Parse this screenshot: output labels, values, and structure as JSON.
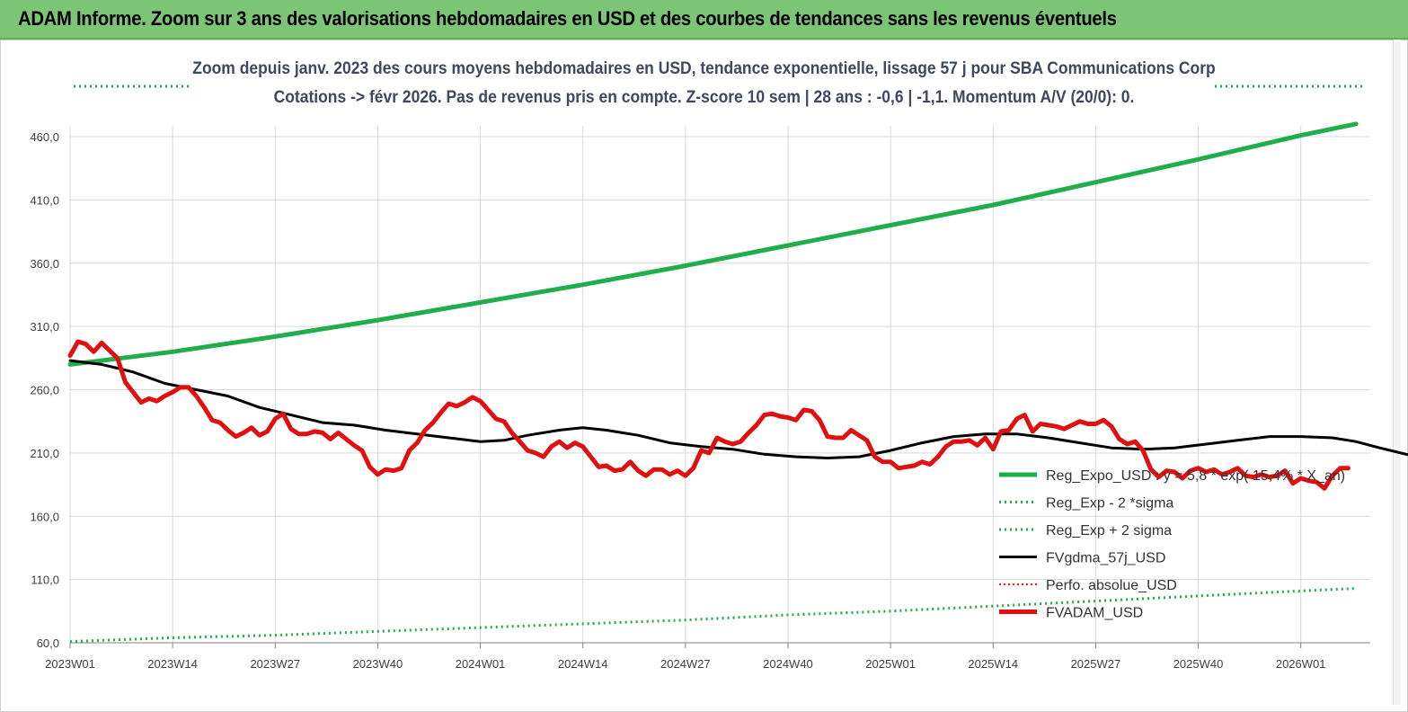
{
  "banner": {
    "title": "ADAM Informe. Zoom sur 3 ans des valorisations hebdomadaires en USD et des courbes de tendances sans les revenus éventuels"
  },
  "colors": {
    "banner_bg": "#7cc576",
    "reg_expo": "#1fae4b",
    "sigma": "#1fae4b",
    "fvgdma": "#000000",
    "perfo": "#e02020",
    "fvadam": "#e01010",
    "grid": "#d9d9d9"
  },
  "chart_data": {
    "type": "line",
    "title": "Zoom depuis janv. 2023 des cours moyens hebdomadaires en USD, tendance exponentielle, lissage 57 j pour SBA Communications Corp",
    "subtitle": "Cotations -> févr 2026.  Pas de revenus pris en compte. Z-score 10 sem | 28 ans : -0,6 | -1,1. Momentum A/V (20/0): 0.",
    "x_ticks": [
      "2023W01",
      "2023W14",
      "2023W27",
      "2023W40",
      "2024W01",
      "2024W14",
      "2024W27",
      "2024W40",
      "2025W01",
      "2025W14",
      "2025W27",
      "2025W40",
      "2026W01"
    ],
    "y_ticks": [
      "60,0",
      "110,0",
      "160,0",
      "210,0",
      "260,0",
      "310,0",
      "360,0",
      "410,0",
      "460,0"
    ],
    "ylim": [
      60,
      495
    ],
    "x_range_weeks": [
      0,
      163
    ],
    "grid": true,
    "legend_position": "bottom-right",
    "series": [
      {
        "name": "Reg_Expo_USD : y = 5,8 * exp( 15,4% * X_an)",
        "style": "thick-solid",
        "points": [
          [
            0,
            280
          ],
          [
            13,
            290
          ],
          [
            26,
            302
          ],
          [
            39,
            315
          ],
          [
            52,
            329
          ],
          [
            65,
            343
          ],
          [
            78,
            358
          ],
          [
            91,
            374
          ],
          [
            104,
            390
          ],
          [
            117,
            406
          ],
          [
            130,
            424
          ],
          [
            143,
            442
          ],
          [
            156,
            461
          ],
          [
            163,
            470
          ]
        ]
      },
      {
        "name": "Reg_Exp - 2 *sigma",
        "style": "dotted",
        "points": [
          [
            0,
            61
          ],
          [
            13,
            64
          ],
          [
            26,
            66
          ],
          [
            39,
            69
          ],
          [
            52,
            72
          ],
          [
            65,
            75
          ],
          [
            78,
            78
          ],
          [
            91,
            82
          ],
          [
            104,
            85
          ],
          [
            117,
            89
          ],
          [
            130,
            93
          ],
          [
            143,
            97
          ],
          [
            156,
            101
          ],
          [
            163,
            103
          ]
        ]
      },
      {
        "name": "Reg_Exp + 2 sigma",
        "style": "dotted",
        "points": [
          [
            0,
            495
          ],
          [
            163,
            495
          ]
        ]
      },
      {
        "name": "FVgdma_57j_USD",
        "style": "solid",
        "points": [
          [
            0,
            283
          ],
          [
            4,
            280
          ],
          [
            8,
            274
          ],
          [
            12,
            265
          ],
          [
            16,
            260
          ],
          [
            20,
            255
          ],
          [
            24,
            246
          ],
          [
            28,
            240
          ],
          [
            32,
            234
          ],
          [
            36,
            232
          ],
          [
            40,
            228
          ],
          [
            44,
            225
          ],
          [
            48,
            222
          ],
          [
            52,
            219
          ],
          [
            55,
            220
          ],
          [
            58,
            224
          ],
          [
            62,
            228
          ],
          [
            65,
            230
          ],
          [
            68,
            228
          ],
          [
            72,
            224
          ],
          [
            76,
            218
          ],
          [
            80,
            215
          ],
          [
            84,
            213
          ],
          [
            88,
            209
          ],
          [
            92,
            207
          ],
          [
            96,
            206
          ],
          [
            100,
            207
          ],
          [
            104,
            212
          ],
          [
            108,
            218
          ],
          [
            112,
            223
          ],
          [
            116,
            225
          ],
          [
            120,
            225
          ],
          [
            124,
            222
          ],
          [
            128,
            218
          ],
          [
            132,
            214
          ],
          [
            136,
            213
          ],
          [
            140,
            214
          ],
          [
            144,
            217
          ],
          [
            148,
            220
          ],
          [
            152,
            223
          ],
          [
            156,
            223
          ],
          [
            160,
            222
          ],
          [
            163,
            219
          ],
          [
            166,
            214
          ],
          [
            170,
            208
          ],
          [
            174,
            204
          ],
          [
            178,
            200
          ],
          [
            182,
            198
          ],
          [
            186,
            197
          ],
          [
            190,
            196
          ],
          [
            194,
            195
          ],
          [
            198,
            196
          ]
        ]
      },
      {
        "name": "Perfo. absolue_USD",
        "style": "dotted-red",
        "points": []
      },
      {
        "name": "FVADAM_USD",
        "style": "thick-solid",
        "points": [
          [
            0,
            287
          ],
          [
            1,
            298
          ],
          [
            2,
            296
          ],
          [
            3,
            290
          ],
          [
            4,
            297
          ],
          [
            5,
            291
          ],
          [
            6,
            285
          ],
          [
            7,
            266
          ],
          [
            8,
            258
          ],
          [
            9,
            250
          ],
          [
            10,
            253
          ],
          [
            11,
            251
          ],
          [
            12,
            255
          ],
          [
            13,
            258
          ],
          [
            14,
            262
          ],
          [
            15,
            262
          ],
          [
            16,
            255
          ],
          [
            17,
            246
          ],
          [
            18,
            236
          ],
          [
            19,
            234
          ],
          [
            20,
            228
          ],
          [
            21,
            223
          ],
          [
            22,
            226
          ],
          [
            23,
            230
          ],
          [
            24,
            224
          ],
          [
            25,
            227
          ],
          [
            26,
            237
          ],
          [
            27,
            241
          ],
          [
            28,
            229
          ],
          [
            29,
            225
          ],
          [
            30,
            225
          ],
          [
            31,
            227
          ],
          [
            32,
            226
          ],
          [
            33,
            221
          ],
          [
            34,
            226
          ],
          [
            35,
            221
          ],
          [
            36,
            216
          ],
          [
            37,
            212
          ],
          [
            38,
            199
          ],
          [
            39,
            193
          ],
          [
            40,
            197
          ],
          [
            41,
            196
          ],
          [
            42,
            198
          ],
          [
            43,
            212
          ],
          [
            44,
            218
          ],
          [
            45,
            228
          ],
          [
            46,
            234
          ],
          [
            47,
            242
          ],
          [
            48,
            249
          ],
          [
            49,
            247
          ],
          [
            50,
            250
          ],
          [
            51,
            254
          ],
          [
            52,
            251
          ],
          [
            53,
            244
          ],
          [
            54,
            237
          ],
          [
            55,
            235
          ],
          [
            56,
            226
          ],
          [
            57,
            219
          ],
          [
            58,
            212
          ],
          [
            59,
            210
          ],
          [
            60,
            207
          ],
          [
            61,
            215
          ],
          [
            62,
            219
          ],
          [
            63,
            214
          ],
          [
            64,
            218
          ],
          [
            65,
            215
          ],
          [
            66,
            207
          ],
          [
            67,
            199
          ],
          [
            68,
            200
          ],
          [
            69,
            196
          ],
          [
            70,
            197
          ],
          [
            71,
            203
          ],
          [
            72,
            196
          ],
          [
            73,
            192
          ],
          [
            74,
            197
          ],
          [
            75,
            197
          ],
          [
            76,
            193
          ],
          [
            77,
            196
          ],
          [
            78,
            192
          ],
          [
            79,
            198
          ],
          [
            80,
            212
          ],
          [
            81,
            210
          ],
          [
            82,
            222
          ],
          [
            83,
            219
          ],
          [
            84,
            217
          ],
          [
            85,
            219
          ],
          [
            86,
            226
          ],
          [
            87,
            232
          ],
          [
            88,
            240
          ],
          [
            89,
            241
          ],
          [
            90,
            239
          ],
          [
            91,
            238
          ],
          [
            92,
            236
          ],
          [
            93,
            244
          ],
          [
            94,
            243
          ],
          [
            95,
            236
          ],
          [
            96,
            223
          ],
          [
            97,
            222
          ],
          [
            98,
            222
          ],
          [
            99,
            228
          ],
          [
            100,
            224
          ],
          [
            101,
            220
          ],
          [
            102,
            207
          ],
          [
            103,
            203
          ],
          [
            104,
            203
          ],
          [
            105,
            198
          ],
          [
            106,
            199
          ],
          [
            107,
            200
          ],
          [
            108,
            203
          ],
          [
            109,
            201
          ],
          [
            110,
            207
          ],
          [
            111,
            215
          ],
          [
            112,
            219
          ],
          [
            113,
            219
          ],
          [
            114,
            220
          ],
          [
            115,
            216
          ],
          [
            116,
            222
          ],
          [
            117,
            213
          ],
          [
            118,
            227
          ],
          [
            119,
            228
          ],
          [
            120,
            237
          ],
          [
            121,
            240
          ],
          [
            122,
            227
          ],
          [
            123,
            233
          ],
          [
            124,
            232
          ],
          [
            125,
            231
          ],
          [
            126,
            229
          ],
          [
            127,
            232
          ],
          [
            128,
            235
          ],
          [
            129,
            233
          ],
          [
            130,
            233
          ],
          [
            131,
            236
          ],
          [
            132,
            231
          ],
          [
            133,
            221
          ],
          [
            134,
            217
          ],
          [
            135,
            219
          ],
          [
            136,
            212
          ],
          [
            137,
            197
          ],
          [
            138,
            191
          ],
          [
            139,
            196
          ],
          [
            140,
            195
          ],
          [
            141,
            190
          ],
          [
            142,
            196
          ],
          [
            143,
            198
          ],
          [
            144,
            195
          ],
          [
            145,
            197
          ],
          [
            146,
            193
          ],
          [
            147,
            195
          ],
          [
            148,
            198
          ],
          [
            149,
            192
          ],
          [
            150,
            191
          ],
          [
            151,
            193
          ],
          [
            152,
            191
          ],
          [
            153,
            192
          ],
          [
            154,
            196
          ],
          [
            155,
            186
          ],
          [
            156,
            190
          ],
          [
            157,
            188
          ],
          [
            158,
            187
          ],
          [
            159,
            182
          ],
          [
            160,
            192
          ],
          [
            161,
            198
          ],
          [
            162,
            198
          ]
        ]
      }
    ]
  }
}
